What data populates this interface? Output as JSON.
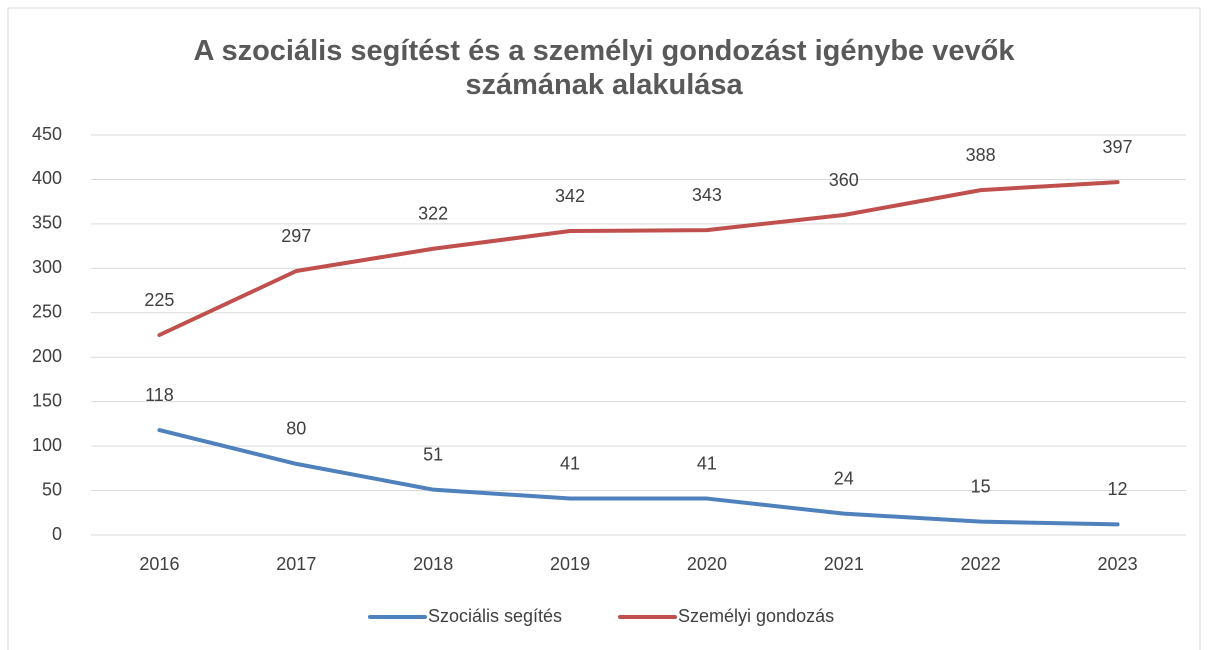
{
  "chart_data": {
    "type": "line",
    "title": "A szociális segítést és a személyi gondozást igénybe vevők számának alakulása",
    "categories": [
      "2016",
      "2017",
      "2018",
      "2019",
      "2020",
      "2021",
      "2022",
      "2023"
    ],
    "series": [
      {
        "name": "Szociális segítés",
        "color": "#4f81bd",
        "values": [
          118,
          80,
          51,
          41,
          41,
          24,
          15,
          12
        ]
      },
      {
        "name": "Személyi gondozás",
        "color": "#c0504d",
        "values": [
          225,
          297,
          322,
          342,
          343,
          360,
          388,
          397
        ]
      }
    ],
    "ylim": [
      0,
      450
    ],
    "yticks": [
      0,
      50,
      100,
      150,
      200,
      250,
      300,
      350,
      400,
      450
    ],
    "grid": true,
    "legend": "bottom"
  }
}
